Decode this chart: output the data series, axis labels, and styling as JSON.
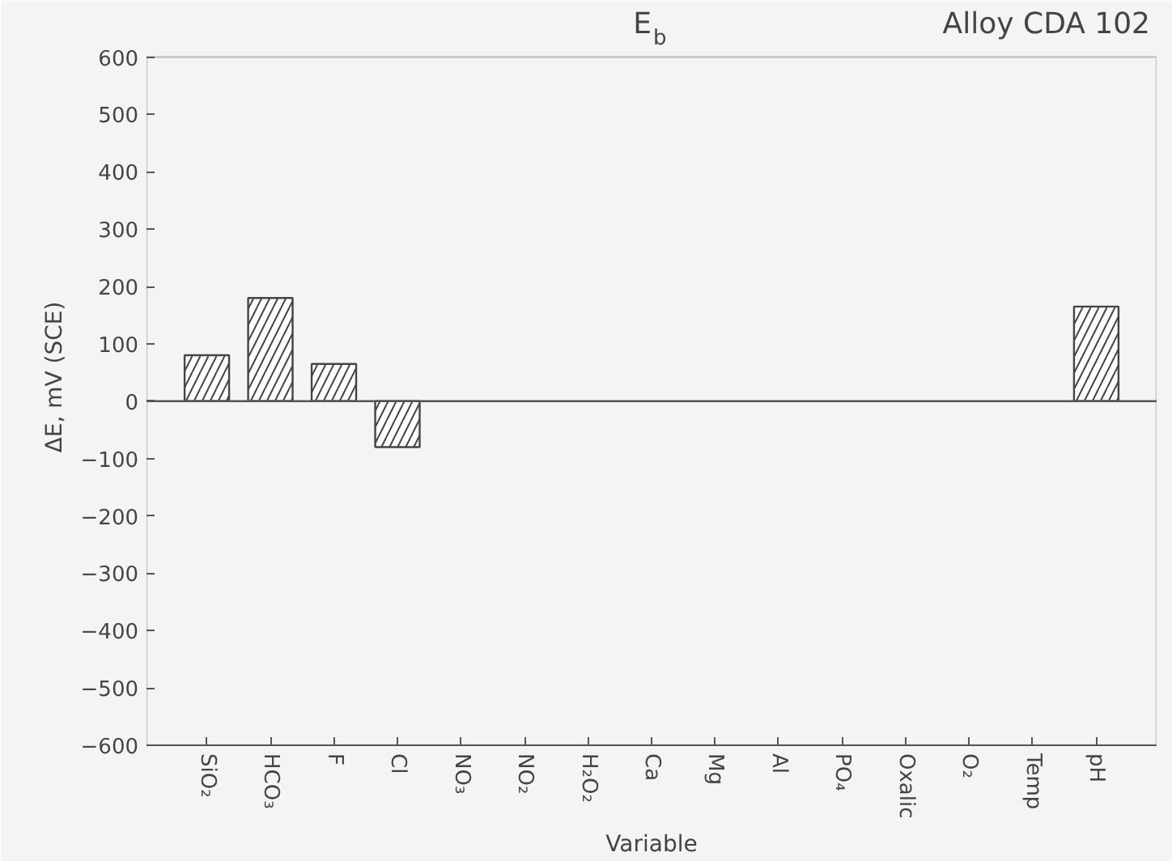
{
  "chart_data": {
    "type": "bar",
    "title": "E$_{b}$",
    "subtitle": "Alloy CDA 102",
    "xlabel": "Variable",
    "ylabel": "ΔE, mV (SCE)",
    "categories": [
      "SiO₂",
      "HCO₃",
      "F",
      "Cl",
      "NO₃",
      "NO₂",
      "H₂O₂",
      "Ca",
      "Mg",
      "Al",
      "PO₄",
      "Oxalic",
      "O₂",
      "Temp",
      "pH"
    ],
    "values": [
      80,
      180,
      65,
      -80,
      null,
      null,
      null,
      null,
      null,
      null,
      null,
      null,
      null,
      null,
      165
    ],
    "color": "#ffffff",
    "ylim": [
      -600,
      600
    ],
    "yticks": [
      -600,
      -500,
      -400,
      -300,
      -200,
      -100,
      0,
      100,
      200,
      300,
      400,
      500,
      600
    ],
    "ref_lines": [
      {
        "axis": "y",
        "value": 0,
        "color": "#555555"
      }
    ],
    "grid": false
  }
}
